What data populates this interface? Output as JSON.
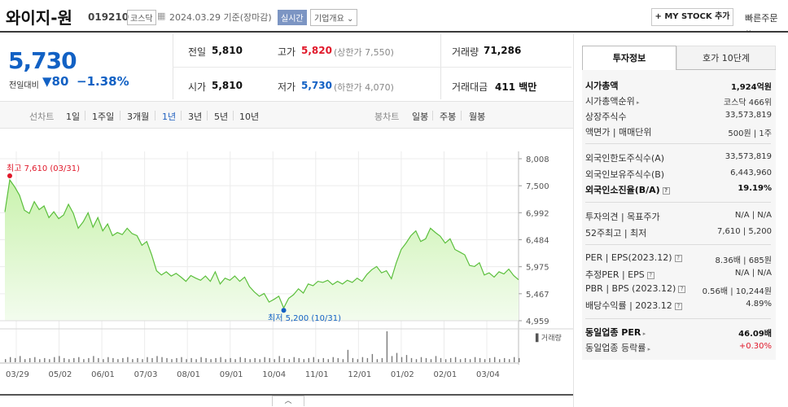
{
  "header": {
    "stock_name": "와이지-원",
    "stock_code": "019210",
    "market": "코스닥",
    "date_label": "2024.03.29  기준(장마감)",
    "realtime_label": "실시간",
    "corp_info_label": "기업개요 ⌄",
    "mystock_label": "+ MY STOCK 추가",
    "quick_order_label": "빠른주문 ⌄"
  },
  "price": {
    "current": "5,730",
    "change_label": "전일대비",
    "change_value": "▼80",
    "change_percent": "−1.38%"
  },
  "stats": {
    "prev_close_label": "전일",
    "prev_close": "5,810",
    "high_label": "고가",
    "high": "5,820",
    "high_limit": "(상한가 7,550)",
    "volume_label": "거래량",
    "volume": "71,286",
    "open_label": "시가",
    "open": "5,810",
    "low_label": "저가",
    "low": "5,730",
    "low_limit": "(하한가 4,070)",
    "amount_label": "거래대금",
    "amount": "411 백만"
  },
  "tabs": {
    "line_chart": "선차트",
    "periods": [
      "1일",
      "1주일",
      "3개월",
      "1년",
      "3년",
      "5년",
      "10년"
    ],
    "selected_period": "1년",
    "candle_chart": "봉차트",
    "candle_periods": [
      "일봉",
      "주봉",
      "월봉"
    ]
  },
  "chart_data": {
    "type": "area",
    "y_ticks": [
      "8,008",
      "7,500",
      "6,992",
      "6,484",
      "5,975",
      "5,467",
      "4,959"
    ],
    "ylim": [
      4959,
      8008
    ],
    "x_ticks": [
      "03/29",
      "05/02",
      "06/01",
      "07/03",
      "08/01",
      "09/01",
      "10/04",
      "11/01",
      "12/01",
      "01/02",
      "02/01",
      "03/04"
    ],
    "high_annotation": "최고 7,610 (03/31)",
    "low_annotation": "최저 5,200 (10/31)",
    "volume_label": "거래량",
    "colors": {
      "line": "#5bbf3c",
      "fill_top": "#c9f2ad",
      "fill_bottom": "#f3fcee",
      "high": "#e0182a",
      "low": "#1261c4",
      "volume": "#7a7a7a"
    },
    "series": [
      {
        "values": [
          7005,
          7610,
          7480,
          7320,
          7040,
          6980,
          7200,
          7050,
          7120,
          6900,
          7010,
          6880,
          6950,
          7150,
          6980,
          6700,
          6820,
          6990,
          6720,
          6900,
          6650,
          6780,
          6560,
          6620,
          6580,
          6700,
          6600,
          6560,
          6380,
          6450,
          6200,
          5900,
          5820,
          5880,
          5800,
          5850,
          5780,
          5700,
          5810,
          5760,
          5720,
          5800,
          5700,
          5880,
          5650,
          5760,
          5720,
          5800,
          5700,
          5780,
          5600,
          5500,
          5420,
          5470,
          5310,
          5360,
          5420,
          5200,
          5380,
          5450,
          5560,
          5480,
          5650,
          5620,
          5700,
          5680,
          5720,
          5640,
          5700,
          5650,
          5720,
          5680,
          5760,
          5700,
          5830,
          5920,
          5980,
          5860,
          5900,
          5750,
          6050,
          6300,
          6420,
          6560,
          6650,
          6450,
          6500,
          6700,
          6620,
          6550,
          6420,
          6500,
          6300,
          6250,
          6200,
          6000,
          5980,
          6050,
          5820,
          5860,
          5780,
          5880,
          5840,
          5930,
          5810,
          5730
        ]
      }
    ],
    "volume_values": [
      3,
      5,
      4,
      6,
      3,
      4,
      5,
      3,
      4,
      3,
      5,
      6,
      4,
      3,
      4,
      5,
      3,
      4,
      6,
      4,
      3,
      5,
      4,
      3,
      4,
      5,
      3,
      4,
      3,
      5,
      4,
      6,
      5,
      4,
      3,
      4,
      5,
      3,
      4,
      3,
      5,
      4,
      3,
      4,
      5,
      3,
      4,
      3,
      5,
      4,
      3,
      4,
      3,
      5,
      4,
      3,
      6,
      4,
      3,
      5,
      4,
      3,
      4,
      5,
      3,
      4,
      3,
      5,
      4,
      3,
      12,
      4,
      3,
      5,
      4,
      8,
      3,
      4,
      30,
      6,
      9,
      5,
      7,
      4,
      3,
      5,
      4,
      3,
      6,
      4,
      3,
      4,
      5,
      3,
      4,
      3,
      5,
      4,
      3,
      4,
      5,
      3,
      4,
      3,
      5,
      4
    ]
  },
  "info": {
    "tab_invest": "투자정보",
    "tab_hoga": "호가 10단계",
    "rows": [
      {
        "label": "시가총액",
        "value": "1,924억원",
        "bold": true
      },
      {
        "label": "시가총액순위",
        "value": "코스닥 466위"
      },
      {
        "label": "상장주식수",
        "value": "33,573,819"
      },
      {
        "label": "액면가 | 매매단위",
        "value": "500원 | 1주"
      },
      {
        "label": "외국인한도주식수(A)",
        "value": "33,573,819"
      },
      {
        "label": "외국인보유주식수(B)",
        "value": "6,443,960"
      },
      {
        "label": "외국인소진율(B/A)",
        "value": "19.19%",
        "bold": true
      },
      {
        "label": "투자의견 | 목표주가",
        "value": "N/A | N/A"
      },
      {
        "label": "52주최고 | 최저",
        "value": "7,610 | 5,200"
      },
      {
        "label": "PER | EPS(2023.12)",
        "value": "8.36배 | 685원"
      },
      {
        "label": "추정PER | EPS",
        "value": "N/A | N/A"
      },
      {
        "label": "PBR | BPS (2023.12)",
        "value": "0.56배 | 10,244원"
      },
      {
        "label": "배당수익률 | 2023.12",
        "value": "4.89%"
      },
      {
        "label": "동일업종 PER",
        "value": "46.09배",
        "bold": true
      },
      {
        "label": "동일업종 등락률",
        "value": "+0.30%",
        "up": true
      }
    ]
  }
}
